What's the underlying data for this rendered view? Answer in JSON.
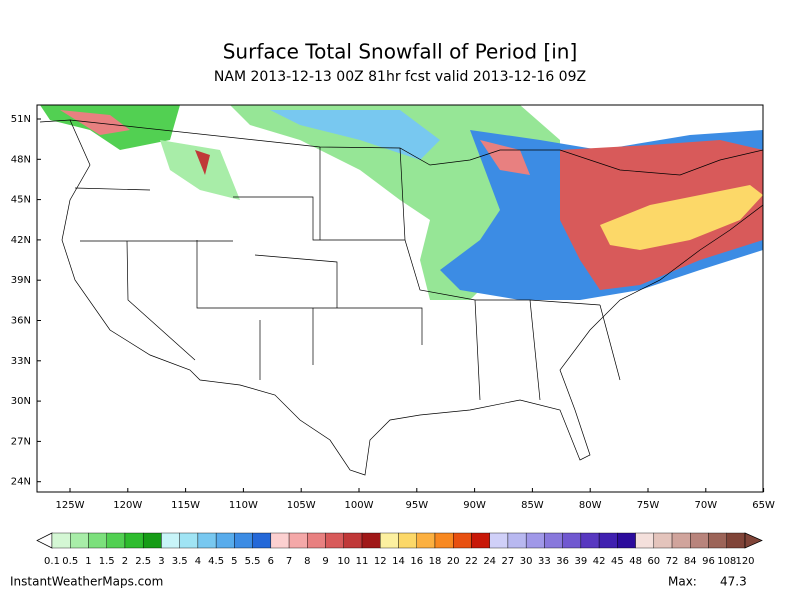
{
  "title": "Surface Total Snowfall of Period [in]",
  "subtitle": "NAM 2013-12-13 00Z 81hr fcst valid 2013-12-16 09Z",
  "latitudes": [
    "51N",
    "48N",
    "45N",
    "42N",
    "39N",
    "36N",
    "33N",
    "30N",
    "27N",
    "24N"
  ],
  "longitudes": [
    "125W",
    "120W",
    "115W",
    "110W",
    "105W",
    "100W",
    "95W",
    "90W",
    "85W",
    "80W",
    "75W",
    "70W",
    "65W"
  ],
  "colorbar": {
    "levels": [
      0.1,
      0.5,
      1,
      1.5,
      2,
      2.5,
      3,
      3.5,
      4,
      4.5,
      5,
      5.5,
      6,
      7,
      8,
      9,
      10,
      11,
      12,
      14,
      16,
      18,
      20,
      22,
      24,
      27,
      30,
      33,
      36,
      39,
      42,
      45,
      48,
      60,
      72,
      84,
      96,
      108,
      120
    ],
    "colors": [
      "#d4f7d4",
      "#a8eda8",
      "#7ce07c",
      "#52d052",
      "#2ebc2e",
      "#169c16",
      "#c8f4f8",
      "#a0e4f4",
      "#78c8f0",
      "#58acec",
      "#3c8ce4",
      "#2468d8",
      "#fcd0d0",
      "#f4a8a8",
      "#e88080",
      "#d85a5a",
      "#c03838",
      "#a01818",
      "#fcf0a0",
      "#fcd868",
      "#fcb040",
      "#f88820",
      "#e85010",
      "#c81808",
      "#d0d0f8",
      "#b8b8f0",
      "#a098e8",
      "#8878dc",
      "#7058d0",
      "#5838c0",
      "#4020b0",
      "#2c0c9c",
      "#f4e0dc",
      "#e4c4bc",
      "#d0a49c",
      "#b8847c",
      "#9c6458",
      "#804438"
    ]
  },
  "footer": "InstantWeatherMaps.com",
  "max_label": "Max:",
  "max_value": 47.3
}
